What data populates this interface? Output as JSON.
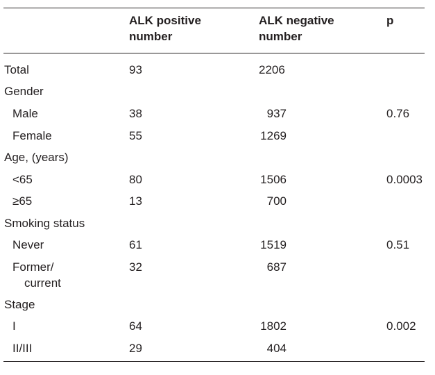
{
  "table": {
    "headers": {
      "col1": "ALK positive\nnumber",
      "col2": "ALK negative\nnumber",
      "col3": "p"
    },
    "rows": [
      {
        "label": "Total",
        "pos": "93",
        "neg": "2206",
        "p": ""
      },
      {
        "label": "Gender",
        "pos": "",
        "neg": "",
        "p": ""
      },
      {
        "label": "Male",
        "pos": "38",
        "neg": "937",
        "p": "0.76"
      },
      {
        "label": "Female",
        "pos": "55",
        "neg": "1269",
        "p": ""
      },
      {
        "label": "Age, (years)",
        "pos": "",
        "neg": "",
        "p": ""
      },
      {
        "label": "<65",
        "pos": "80",
        "neg": "1506",
        "p": "0.0003"
      },
      {
        "label": "≥65",
        "pos": "13",
        "neg": "700",
        "p": ""
      },
      {
        "label": "Smoking status",
        "pos": "",
        "neg": "",
        "p": ""
      },
      {
        "label": "Never",
        "pos": "61",
        "neg": "1519",
        "p": "0.51"
      },
      {
        "label": "Former/",
        "label2": "current",
        "pos": "32",
        "neg": "687",
        "p": ""
      },
      {
        "label": "Stage",
        "pos": "",
        "neg": "",
        "p": ""
      },
      {
        "label": "I",
        "pos": "64",
        "neg": "1802",
        "p": "0.002"
      },
      {
        "label": "II/III",
        "pos": "29",
        "neg": "404",
        "p": ""
      }
    ]
  }
}
